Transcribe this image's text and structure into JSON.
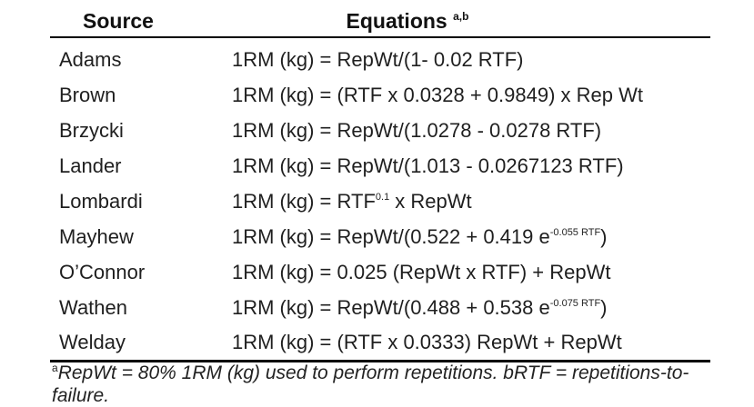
{
  "table": {
    "header": {
      "source": "Source",
      "equations": "Equations",
      "equations_sup": "a,b"
    },
    "rows": [
      {
        "source": "Adams",
        "pre": "1RM (kg) = RepWt/(1- 0.02 RTF)",
        "sup": "",
        "post": ""
      },
      {
        "source": "Brown",
        "pre": "1RM (kg) = (RTF x 0.0328 + 0.9849) x Rep Wt",
        "sup": "",
        "post": ""
      },
      {
        "source": "Brzycki",
        "pre": "1RM (kg) = RepWt/(1.0278 - 0.0278 RTF)",
        "sup": "",
        "post": ""
      },
      {
        "source": "Lander",
        "pre": "1RM (kg) = RepWt/(1.013 - 0.0267123 RTF)",
        "sup": "",
        "post": ""
      },
      {
        "source": "Lombardi",
        "pre": "1RM (kg) = RTF",
        "sup": "0.1",
        "post": " x RepWt"
      },
      {
        "source": "Mayhew",
        "pre": "1RM (kg) = RepWt/(0.522 + 0.419 e",
        "sup": "-0.055 RTF",
        "post": ")"
      },
      {
        "source": "O’Connor",
        "pre": "1RM (kg) = 0.025 (RepWt x RTF) + RepWt",
        "sup": "",
        "post": ""
      },
      {
        "source": "Wathen",
        "pre": "1RM (kg) = RepWt/(0.488 + 0.538 e",
        "sup": "-0.075 RTF",
        "post": ")"
      },
      {
        "source": "Welday",
        "pre": "1RM (kg) = (RTF x 0.0333) RepWt + RepWt",
        "sup": "",
        "post": ""
      }
    ]
  },
  "footnote": {
    "marker": "a",
    "text": "RepWt = 80% 1RM (kg) used to perform repetitions. bRTF = repetitions-to-failure."
  }
}
